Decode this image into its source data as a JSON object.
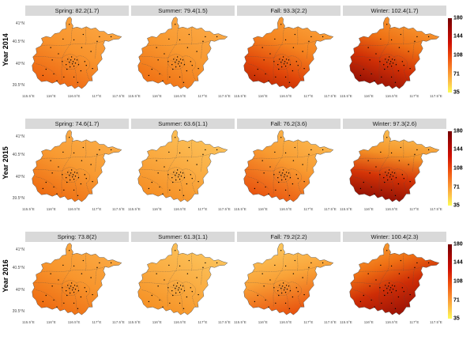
{
  "figure": {
    "strip_bg": "#D9D9D9",
    "background": "#FFFFFF",
    "boundary_color": "#4A4A4A",
    "dot_color": "#000000"
  },
  "chart_data": {
    "type": "heatmap",
    "subtype": "faceted-choropleth-map-grid",
    "region": "Beijing",
    "title": "",
    "facet_columns": [
      "Spring",
      "Summer",
      "Fall",
      "Winter"
    ],
    "facet_rows": [
      "Year 2014",
      "Year 2015",
      "Year 2016"
    ],
    "value_format": "mean(se)",
    "rows": [
      {
        "year": "2014",
        "year_label": "Year 2014",
        "facets": [
          {
            "season": "Spring",
            "label": "Spring: 82.2(1.7)",
            "mean": 82.2,
            "se": 1.7,
            "gradient": {
              "stops": [
                "#FBA844",
                "#F8932C",
                "#EC6210"
              ],
              "offsets": [
                0,
                0.5,
                1
              ],
              "dir": [
                0.8,
                0.02,
                0.22,
                0.98
              ]
            }
          },
          {
            "season": "Summer",
            "label": "Summer: 79.4(1.5)",
            "mean": 79.4,
            "se": 1.5,
            "gradient": {
              "stops": [
                "#FBAC49",
                "#F8982F",
                "#EF7014"
              ],
              "offsets": [
                0,
                0.5,
                1
              ],
              "dir": [
                0.8,
                0.02,
                0.22,
                0.98
              ]
            }
          },
          {
            "season": "Fall",
            "label": "Fall: 93.3(2.2)",
            "mean": 93.3,
            "se": 2.2,
            "gradient": {
              "stops": [
                "#FAA43C",
                "#F58420",
                "#E04509",
                "#C02B05"
              ],
              "offsets": [
                0,
                0.42,
                0.78,
                1
              ],
              "dir": [
                0.75,
                0,
                0.3,
                1
              ]
            }
          },
          {
            "season": "Winter",
            "label": "Winter: 102.4(1.7)",
            "mean": 102.4,
            "se": 1.7,
            "gradient": {
              "stops": [
                "#F9A037",
                "#EF7215",
                "#D03006",
                "#941005"
              ],
              "offsets": [
                0,
                0.38,
                0.68,
                1
              ],
              "dir": [
                0.75,
                0,
                0.3,
                1
              ]
            }
          }
        ]
      },
      {
        "year": "2015",
        "year_label": "Year 2015",
        "facets": [
          {
            "season": "Spring",
            "label": "Spring: 74.6(1.7)",
            "mean": 74.6,
            "se": 1.7,
            "gradient": {
              "stops": [
                "#FBB04C",
                "#F89A31",
                "#ED6A11"
              ],
              "offsets": [
                0,
                0.5,
                1
              ],
              "dir": [
                0.8,
                0.02,
                0.22,
                0.98
              ]
            }
          },
          {
            "season": "Summer",
            "label": "Summer: 63.6(1.1)",
            "mean": 63.6,
            "se": 1.1,
            "gradient": {
              "stops": [
                "#FCC55D",
                "#FAAC42",
                "#F58D23"
              ],
              "offsets": [
                0,
                0.5,
                1
              ],
              "dir": [
                0.8,
                0.02,
                0.22,
                0.98
              ]
            }
          },
          {
            "season": "Fall",
            "label": "Fall: 76.2(3.6)",
            "mean": 76.2,
            "se": 3.6,
            "gradient": {
              "stops": [
                "#FBBD54",
                "#F89A30",
                "#E8530F"
              ],
              "offsets": [
                0,
                0.48,
                1
              ],
              "dir": [
                0.8,
                0.02,
                0.25,
                0.98
              ]
            }
          },
          {
            "season": "Winter",
            "label": "Winter: 97.3(2.6)",
            "mean": 97.3,
            "se": 2.6,
            "gradient": {
              "stops": [
                "#FBC157",
                "#F49227",
                "#D43407",
                "#8E0E04"
              ],
              "offsets": [
                0,
                0.35,
                0.66,
                1
              ],
              "dir": [
                0.6,
                0,
                0.4,
                1
              ]
            }
          }
        ]
      },
      {
        "year": "2016",
        "year_label": "Year 2016",
        "facets": [
          {
            "season": "Spring",
            "label": "Spring: 73.8(2)",
            "mean": 73.8,
            "se": 2,
            "gradient": {
              "stops": [
                "#FAAC46",
                "#F8962D",
                "#ED6A11"
              ],
              "offsets": [
                0,
                0.5,
                1
              ],
              "dir": [
                0.8,
                0.02,
                0.22,
                0.98
              ]
            }
          },
          {
            "season": "Summer",
            "label": "Summer: 61.3(1.1)",
            "mean": 61.3,
            "se": 1.1,
            "gradient": {
              "stops": [
                "#FCC75F",
                "#FAAE44",
                "#F59024"
              ],
              "offsets": [
                0,
                0.5,
                1
              ],
              "dir": [
                0.8,
                0.02,
                0.22,
                0.98
              ]
            }
          },
          {
            "season": "Fall",
            "label": "Fall: 79.2(2.2)",
            "mean": 79.2,
            "se": 2.2,
            "gradient": {
              "stops": [
                "#FCCB62",
                "#F9A237",
                "#E7500D"
              ],
              "offsets": [
                0,
                0.48,
                1
              ],
              "dir": [
                0.25,
                0,
                0.55,
                1
              ]
            }
          },
          {
            "season": "Winter",
            "label": "Winter: 100.4(2.3)",
            "mean": 100.4,
            "se": 2.3,
            "gradient": {
              "stops": [
                "#F9A538",
                "#EF7014",
                "#CE2D06",
                "#960F05"
              ],
              "offsets": [
                0,
                0.32,
                0.62,
                1
              ],
              "dir": [
                0.2,
                0,
                0.65,
                1
              ]
            }
          }
        ]
      }
    ],
    "x_axis": {
      "ticks": [
        "115.5°E",
        "116°E",
        "116.5°E",
        "117°E",
        "117.5°E"
      ]
    },
    "y_axis": {
      "ticks": [
        "41°N",
        "40.5°N",
        "40°N",
        "39.5°N"
      ]
    },
    "colorbar": {
      "position": "right",
      "domain": [
        35,
        180
      ],
      "ticks": [
        180,
        144,
        108,
        71,
        35
      ],
      "colors": [
        "#730101",
        "#A30603",
        "#CF1004",
        "#EF4D0D",
        "#FA9231",
        "#FDC94C",
        "#FDFD54"
      ],
      "color_offsets": [
        0,
        0.15,
        0.33,
        0.52,
        0.72,
        0.88,
        1
      ]
    },
    "grid": false,
    "legend_position": "right-of-each-row"
  }
}
